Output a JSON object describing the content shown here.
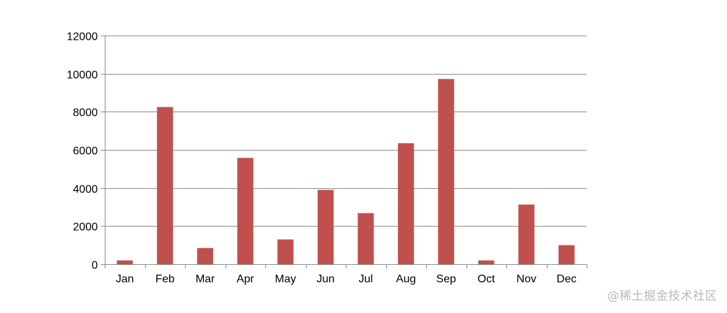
{
  "chart_data": {
    "type": "bar",
    "categories": [
      "Jan",
      "Feb",
      "Mar",
      "Apr",
      "May",
      "Jun",
      "Jul",
      "Aug",
      "Sep",
      "Oct",
      "Nov",
      "Dec"
    ],
    "series": [
      {
        "values": [
          200,
          8250,
          850,
          5580,
          1300,
          3900,
          2680,
          6350,
          9720,
          200,
          3130,
          1000
        ],
        "color": "#c0504d"
      }
    ],
    "ylim": [
      0,
      12000
    ],
    "yticks": [
      0,
      2000,
      4000,
      6000,
      8000,
      10000,
      12000
    ],
    "ytick_labels": [
      "0",
      "2000",
      "4000",
      "6000",
      "8000",
      "10000",
      "12000"
    ],
    "grid": true,
    "legend": "none",
    "title": "",
    "xlabel": "",
    "ylabel": ""
  },
  "watermark": "@稀土掘金技术社区"
}
